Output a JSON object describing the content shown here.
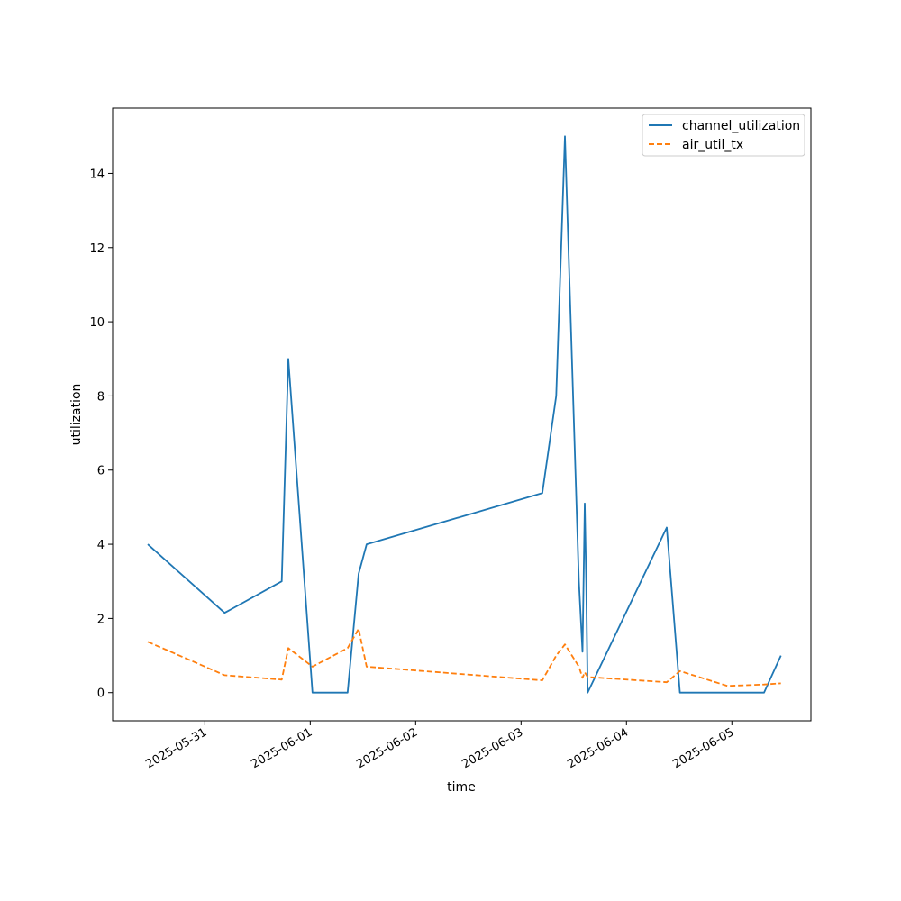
{
  "chart_data": {
    "type": "line",
    "xlabel": "time",
    "ylabel": "utilization",
    "x_ticks": [
      "2025-05-31",
      "2025-06-01",
      "2025-06-02",
      "2025-06-03",
      "2025-06-04",
      "2025-06-05"
    ],
    "y_ticks": [
      0,
      2,
      4,
      6,
      8,
      10,
      12,
      14
    ],
    "xlim": [
      "2025-05-30 03:00",
      "2025-06-05 18:00"
    ],
    "ylim": [
      -0.76,
      15.76
    ],
    "grid": false,
    "legend_position": "top-right",
    "series": [
      {
        "name": "channel_utilization",
        "color": "#1f77b4",
        "dash": "solid",
        "points": [
          [
            "2025-05-30 11:00",
            4.0
          ],
          [
            "2025-05-31 04:30",
            2.15
          ],
          [
            "2025-05-31 17:30",
            3.0
          ],
          [
            "2025-05-31 19:00",
            9.0
          ],
          [
            "2025-06-01 00:30",
            0.0
          ],
          [
            "2025-06-01 08:30",
            0.0
          ],
          [
            "2025-06-01 11:00",
            3.2
          ],
          [
            "2025-06-01 12:50",
            4.0
          ],
          [
            "2025-06-03 04:50",
            5.38
          ],
          [
            "2025-06-03 08:00",
            8.0
          ],
          [
            "2025-06-03 10:00",
            15.0
          ],
          [
            "2025-06-03 13:10",
            3.0
          ],
          [
            "2025-06-03 14:00",
            1.1
          ],
          [
            "2025-06-03 14:30",
            5.1
          ],
          [
            "2025-06-03 14:50",
            3.0
          ],
          [
            "2025-06-03 15:10",
            0.0
          ],
          [
            "2025-06-04 09:10",
            4.45
          ],
          [
            "2025-06-04 12:10",
            0.0
          ],
          [
            "2025-06-05 07:20",
            0.0
          ],
          [
            "2025-06-05 11:10",
            1.0
          ]
        ]
      },
      {
        "name": "air_util_tx",
        "color": "#ff7f0e",
        "dash": "dashed",
        "points": [
          [
            "2025-05-30 11:00",
            1.37
          ],
          [
            "2025-05-31 04:30",
            0.47
          ],
          [
            "2025-05-31 17:30",
            0.35
          ],
          [
            "2025-05-31 19:00",
            1.2
          ],
          [
            "2025-06-01 00:30",
            0.7
          ],
          [
            "2025-06-01 08:30",
            1.2
          ],
          [
            "2025-06-01 11:00",
            1.72
          ],
          [
            "2025-06-01 12:50",
            0.7
          ],
          [
            "2025-06-03 04:50",
            0.33
          ],
          [
            "2025-06-03 08:00",
            1.0
          ],
          [
            "2025-06-03 10:00",
            1.3
          ],
          [
            "2025-06-03 13:10",
            0.7
          ],
          [
            "2025-06-03 14:00",
            0.4
          ],
          [
            "2025-06-03 14:30",
            0.55
          ],
          [
            "2025-06-03 15:10",
            0.42
          ],
          [
            "2025-06-04 09:10",
            0.28
          ],
          [
            "2025-06-04 12:10",
            0.58
          ],
          [
            "2025-06-04 23:00",
            0.18
          ],
          [
            "2025-06-05 07:20",
            0.22
          ],
          [
            "2025-06-05 11:10",
            0.25
          ]
        ]
      }
    ]
  }
}
